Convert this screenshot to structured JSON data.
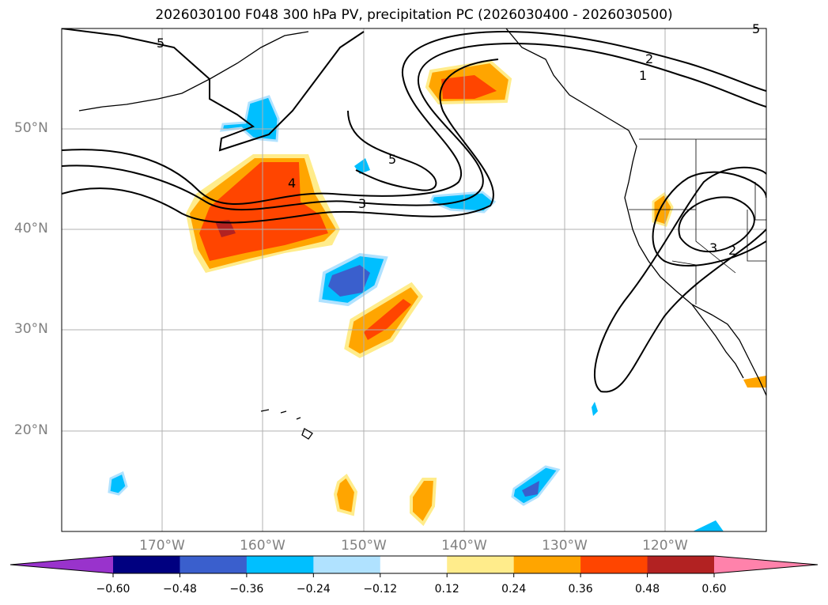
{
  "title": "2026030100 F048 300 hPa PV, precipitation PC (2026030400 - 2026030500)",
  "lat_labels": [
    "50°N",
    "40°N",
    "30°N",
    "20°N"
  ],
  "lon_labels": [
    "170°W",
    "160°W",
    "150°W",
    "140°W",
    "130°W",
    "120°W"
  ],
  "contour_labels": [
    "5",
    "2",
    "1",
    "4",
    "5",
    "3",
    "3",
    "2",
    "5"
  ],
  "colorbar": {
    "ticks": [
      "−0.60",
      "−0.48",
      "−0.36",
      "−0.24",
      "−0.12",
      "0.12",
      "0.24",
      "0.36",
      "0.48",
      "0.60"
    ],
    "colors": [
      "#9933cc",
      "#000080",
      "#3a5fcd",
      "#00bfff",
      "#b0e2ff",
      "#ffffff",
      "#ffec8b",
      "#ffa500",
      "#ff4500",
      "#b22222",
      "#ff82ab"
    ]
  },
  "map_extent": {
    "lon": [
      -180,
      -110
    ],
    "lat": [
      10,
      60
    ]
  }
}
